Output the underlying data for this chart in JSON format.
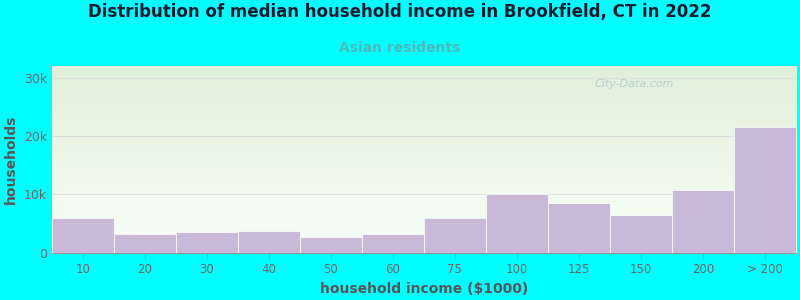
{
  "title": "Distribution of median household income in Brookfield, CT in 2022",
  "subtitle": "Asian residents",
  "xlabel": "household income ($1000)",
  "ylabel": "households",
  "background_color": "#00FFFF",
  "plot_bg_top": "#dff0d8",
  "plot_bg_bottom": "#f8fff8",
  "bar_color": "#c9b8d8",
  "bar_edge_color": "#ffffff",
  "title_color": "#1a1a2e",
  "subtitle_color": "#4db8b8",
  "axis_label_color": "#555555",
  "tick_label_color": "#666666",
  "watermark": "City-Data.com",
  "watermark_color": "#aacccc",
  "bin_edges": [
    0,
    10,
    20,
    30,
    40,
    50,
    60,
    75,
    100,
    125,
    150,
    200,
    250
  ],
  "bin_labels": [
    "10",
    "20",
    "30",
    "40",
    "50",
    "60",
    "75",
    "100",
    "125",
    "150",
    "200",
    "> 200"
  ],
  "values": [
    6000,
    3200,
    3500,
    3700,
    2800,
    3200,
    6000,
    10000,
    8500,
    6500,
    10800,
    21500
  ],
  "ylim": [
    0,
    32000
  ],
  "yticks": [
    0,
    10000,
    20000,
    30000
  ],
  "ytick_labels": [
    "0",
    "10k",
    "20k",
    "30k"
  ],
  "title_fontsize": 12,
  "subtitle_fontsize": 10,
  "axis_label_fontsize": 10
}
